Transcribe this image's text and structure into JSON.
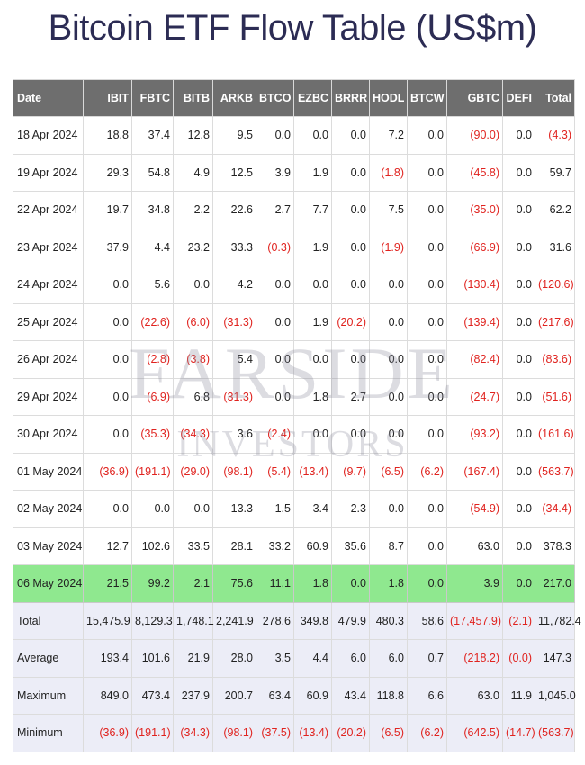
{
  "title": "Bitcoin ETF Flow Table (US$m)",
  "watermark": {
    "line1": "FARSIDE",
    "line2": "INVESTORS"
  },
  "colors": {
    "header_bg": "#6e6e6e",
    "negative": "#e0231f",
    "highlight_row": "#8fe88f",
    "summary_bg": "#ecedf7"
  },
  "table": {
    "headers": [
      "Date",
      "IBIT",
      "FBTC",
      "BITB",
      "ARKB",
      "BTCO",
      "EZBC",
      "BRRR",
      "HODL",
      "BTCW",
      "GBTC",
      "DEFI",
      "Total"
    ],
    "rows": [
      [
        "18 Apr 2024",
        "18.8",
        "37.4",
        "12.8",
        "9.5",
        "0.0",
        "0.0",
        "0.0",
        "7.2",
        "0.0",
        "(90.0)",
        "0.0",
        "(4.3)"
      ],
      [
        "19 Apr 2024",
        "29.3",
        "54.8",
        "4.9",
        "12.5",
        "3.9",
        "1.9",
        "0.0",
        "(1.8)",
        "0.0",
        "(45.8)",
        "0.0",
        "59.7"
      ],
      [
        "22 Apr 2024",
        "19.7",
        "34.8",
        "2.2",
        "22.6",
        "2.7",
        "7.7",
        "0.0",
        "7.5",
        "0.0",
        "(35.0)",
        "0.0",
        "62.2"
      ],
      [
        "23 Apr 2024",
        "37.9",
        "4.4",
        "23.2",
        "33.3",
        "(0.3)",
        "1.9",
        "0.0",
        "(1.9)",
        "0.0",
        "(66.9)",
        "0.0",
        "31.6"
      ],
      [
        "24 Apr 2024",
        "0.0",
        "5.6",
        "0.0",
        "4.2",
        "0.0",
        "0.0",
        "0.0",
        "0.0",
        "0.0",
        "(130.4)",
        "0.0",
        "(120.6)"
      ],
      [
        "25 Apr 2024",
        "0.0",
        "(22.6)",
        "(6.0)",
        "(31.3)",
        "0.0",
        "1.9",
        "(20.2)",
        "0.0",
        "0.0",
        "(139.4)",
        "0.0",
        "(217.6)"
      ],
      [
        "26 Apr 2024",
        "0.0",
        "(2.8)",
        "(3.8)",
        "5.4",
        "0.0",
        "0.0",
        "0.0",
        "0.0",
        "0.0",
        "(82.4)",
        "0.0",
        "(83.6)"
      ],
      [
        "29 Apr 2024",
        "0.0",
        "(6.9)",
        "6.8",
        "(31.3)",
        "0.0",
        "1.8",
        "2.7",
        "0.0",
        "0.0",
        "(24.7)",
        "0.0",
        "(51.6)"
      ],
      [
        "30 Apr 2024",
        "0.0",
        "(35.3)",
        "(34.3)",
        "3.6",
        "(2.4)",
        "0.0",
        "0.0",
        "0.0",
        "0.0",
        "(93.2)",
        "0.0",
        "(161.6)"
      ],
      [
        "01 May 2024",
        "(36.9)",
        "(191.1)",
        "(29.0)",
        "(98.1)",
        "(5.4)",
        "(13.4)",
        "(9.7)",
        "(6.5)",
        "(6.2)",
        "(167.4)",
        "0.0",
        "(563.7)"
      ],
      [
        "02 May 2024",
        "0.0",
        "0.0",
        "0.0",
        "13.3",
        "1.5",
        "3.4",
        "2.3",
        "0.0",
        "0.0",
        "(54.9)",
        "0.0",
        "(34.4)"
      ],
      [
        "03 May 2024",
        "12.7",
        "102.6",
        "33.5",
        "28.1",
        "33.2",
        "60.9",
        "35.6",
        "8.7",
        "0.0",
        "63.0",
        "0.0",
        "378.3"
      ],
      [
        "06 May 2024",
        "21.5",
        "99.2",
        "2.1",
        "75.6",
        "11.1",
        "1.8",
        "0.0",
        "1.8",
        "0.0",
        "3.9",
        "0.0",
        "217.0"
      ]
    ],
    "highlight_row_index": 12,
    "summary_rows": [
      [
        "Total",
        "15,475.9",
        "8,129.3",
        "1,748.1",
        "2,241.9",
        "278.6",
        "349.8",
        "479.9",
        "480.3",
        "58.6",
        "(17,457.9)",
        "(2.1)",
        "11,782.4"
      ],
      [
        "Average",
        "193.4",
        "101.6",
        "21.9",
        "28.0",
        "3.5",
        "4.4",
        "6.0",
        "6.0",
        "0.7",
        "(218.2)",
        "(0.0)",
        "147.3"
      ],
      [
        "Maximum",
        "849.0",
        "473.4",
        "237.9",
        "200.7",
        "63.4",
        "60.9",
        "43.4",
        "118.8",
        "6.6",
        "63.0",
        "11.9",
        "1,045.0"
      ],
      [
        "Minimum",
        "(36.9)",
        "(191.1)",
        "(34.3)",
        "(98.1)",
        "(37.5)",
        "(13.4)",
        "(20.2)",
        "(6.5)",
        "(6.2)",
        "(642.5)",
        "(14.7)",
        "(563.7)"
      ]
    ]
  }
}
